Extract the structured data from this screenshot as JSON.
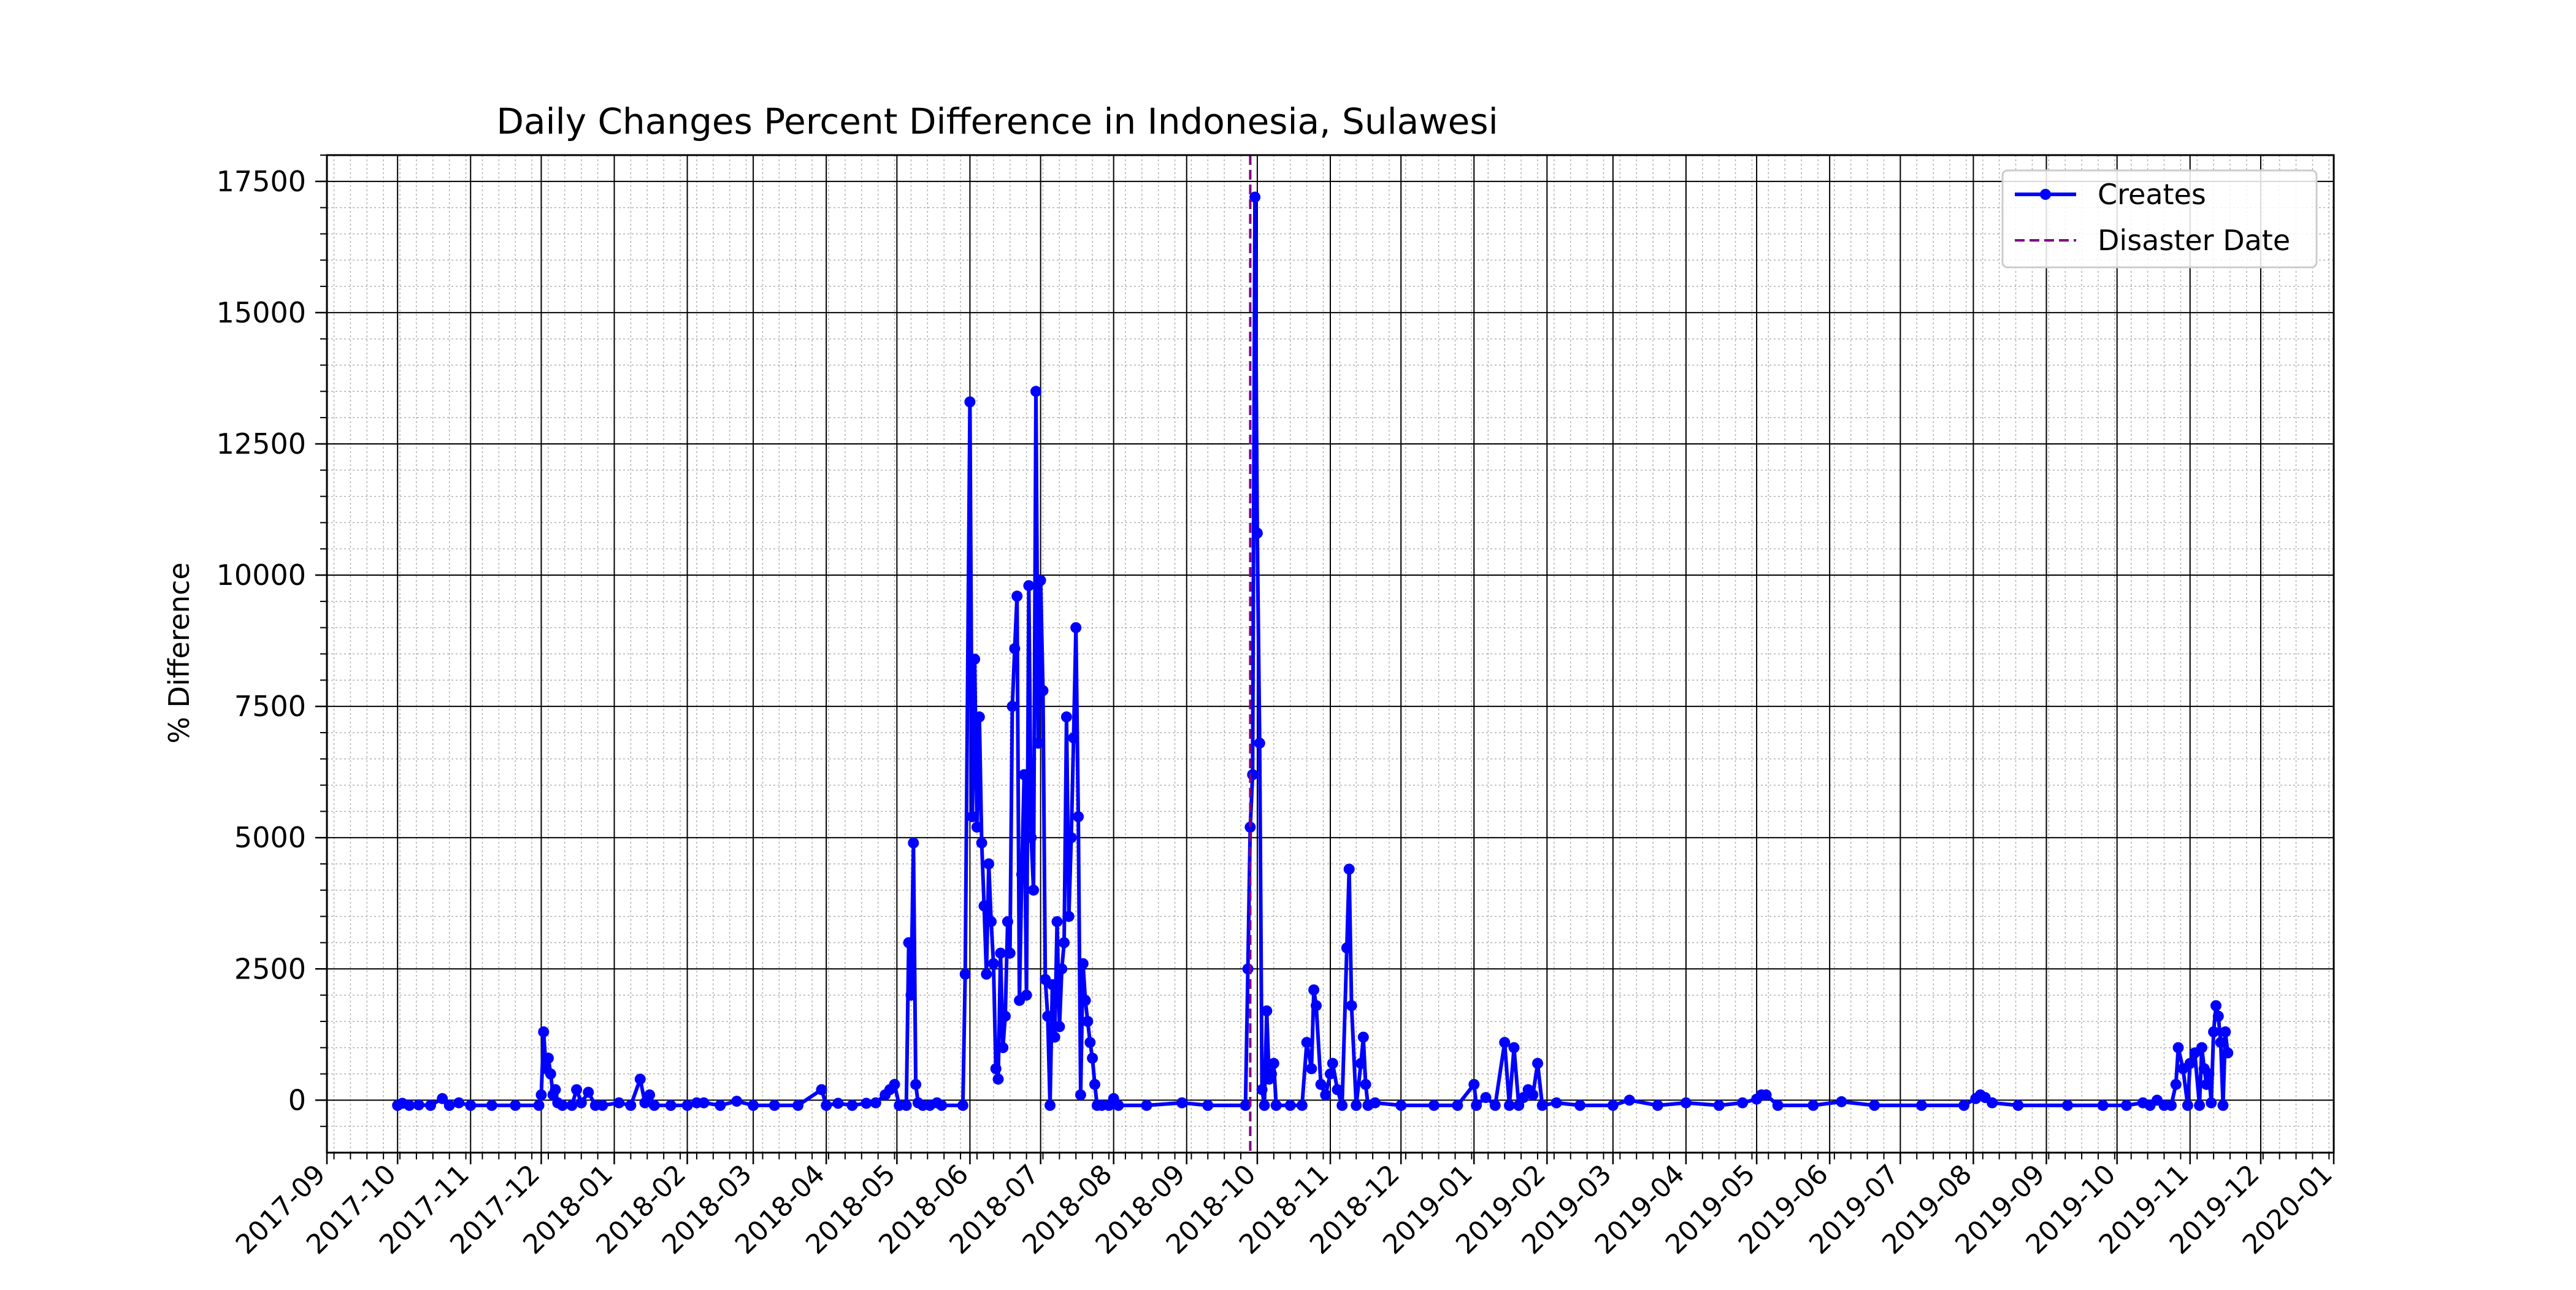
{
  "chart_data": {
    "type": "line",
    "title": "Daily Changes Percent Difference in Indonesia, Sulawesi",
    "xlabel": "",
    "ylabel": "% Difference",
    "x_axis": {
      "type": "date",
      "range": [
        "2017-09-01",
        "2020-01-01"
      ],
      "major_ticks": [
        "2017-09",
        "2017-10",
        "2017-11",
        "2017-12",
        "2018-01",
        "2018-02",
        "2018-03",
        "2018-04",
        "2018-05",
        "2018-06",
        "2018-07",
        "2018-08",
        "2018-09",
        "2018-10",
        "2018-11",
        "2018-12",
        "2019-01",
        "2019-02",
        "2019-03",
        "2019-04",
        "2019-05",
        "2019-06",
        "2019-07",
        "2019-08",
        "2019-09",
        "2019-10",
        "2019-11",
        "2019-12",
        "2020-01"
      ]
    },
    "y_axis": {
      "range": [
        -1000,
        18000
      ],
      "major_ticks": [
        "0",
        "2500",
        "5000",
        "7500",
        "10000",
        "12500",
        "15000",
        "17500"
      ]
    },
    "grid": true,
    "legend_position": "top-right",
    "series": [
      {
        "name": "Creates",
        "color": "#0000ff",
        "marker": "circle",
        "points": [
          [
            "2017-10-01",
            -100
          ],
          [
            "2017-10-03",
            -60
          ],
          [
            "2017-10-06",
            -100
          ],
          [
            "2017-10-10",
            -90
          ],
          [
            "2017-10-15",
            -100
          ],
          [
            "2017-10-20",
            30
          ],
          [
            "2017-10-23",
            -100
          ],
          [
            "2017-10-27",
            -50
          ],
          [
            "2017-11-01",
            -100
          ],
          [
            "2017-11-10",
            -100
          ],
          [
            "2017-11-20",
            -100
          ],
          [
            "2017-11-30",
            -100
          ],
          [
            "2017-12-01",
            100
          ],
          [
            "2017-12-02",
            1300
          ],
          [
            "2017-12-03",
            600
          ],
          [
            "2017-12-04",
            800
          ],
          [
            "2017-12-05",
            500
          ],
          [
            "2017-12-06",
            100
          ],
          [
            "2017-12-07",
            200
          ],
          [
            "2017-12-08",
            -50
          ],
          [
            "2017-12-10",
            -100
          ],
          [
            "2017-12-14",
            -100
          ],
          [
            "2017-12-16",
            200
          ],
          [
            "2017-12-18",
            -50
          ],
          [
            "2017-12-21",
            150
          ],
          [
            "2017-12-24",
            -100
          ],
          [
            "2017-12-27",
            -100
          ],
          [
            "2018-01-03",
            -50
          ],
          [
            "2018-01-08",
            -100
          ],
          [
            "2018-01-12",
            400
          ],
          [
            "2018-01-14",
            -50
          ],
          [
            "2018-01-16",
            100
          ],
          [
            "2018-01-18",
            -100
          ],
          [
            "2018-01-25",
            -100
          ],
          [
            "2018-02-01",
            -100
          ],
          [
            "2018-02-05",
            -50
          ],
          [
            "2018-02-08",
            -50
          ],
          [
            "2018-02-15",
            -100
          ],
          [
            "2018-02-22",
            -20
          ],
          [
            "2018-03-01",
            -100
          ],
          [
            "2018-03-10",
            -100
          ],
          [
            "2018-03-20",
            -100
          ],
          [
            "2018-03-30",
            200
          ],
          [
            "2018-04-01",
            -100
          ],
          [
            "2018-04-06",
            -60
          ],
          [
            "2018-04-12",
            -100
          ],
          [
            "2018-04-18",
            -60
          ],
          [
            "2018-04-22",
            -50
          ],
          [
            "2018-04-26",
            100
          ],
          [
            "2018-04-28",
            200
          ],
          [
            "2018-04-30",
            300
          ],
          [
            "2018-05-02",
            -100
          ],
          [
            "2018-05-05",
            -100
          ],
          [
            "2018-05-06",
            3000
          ],
          [
            "2018-05-07",
            2000
          ],
          [
            "2018-05-08",
            4900
          ],
          [
            "2018-05-09",
            300
          ],
          [
            "2018-05-10",
            -50
          ],
          [
            "2018-05-12",
            -100
          ],
          [
            "2018-05-15",
            -100
          ],
          [
            "2018-05-18",
            -50
          ],
          [
            "2018-05-20",
            -100
          ],
          [
            "2018-05-29",
            -100
          ],
          [
            "2018-05-30",
            2400
          ],
          [
            "2018-06-01",
            13300
          ],
          [
            "2018-06-02",
            5400
          ],
          [
            "2018-06-03",
            8400
          ],
          [
            "2018-06-04",
            5200
          ],
          [
            "2018-06-05",
            7300
          ],
          [
            "2018-06-06",
            4900
          ],
          [
            "2018-06-07",
            3700
          ],
          [
            "2018-06-08",
            2400
          ],
          [
            "2018-06-09",
            4500
          ],
          [
            "2018-06-10",
            3400
          ],
          [
            "2018-06-11",
            2600
          ],
          [
            "2018-06-12",
            600
          ],
          [
            "2018-06-13",
            400
          ],
          [
            "2018-06-14",
            2800
          ],
          [
            "2018-06-15",
            1000
          ],
          [
            "2018-06-16",
            1600
          ],
          [
            "2018-06-17",
            3400
          ],
          [
            "2018-06-18",
            2800
          ],
          [
            "2018-06-19",
            7500
          ],
          [
            "2018-06-20",
            8600
          ],
          [
            "2018-06-21",
            9600
          ],
          [
            "2018-06-22",
            1900
          ],
          [
            "2018-06-23",
            4300
          ],
          [
            "2018-06-24",
            6200
          ],
          [
            "2018-06-25",
            2000
          ],
          [
            "2018-06-26",
            9800
          ],
          [
            "2018-06-27",
            5000
          ],
          [
            "2018-06-28",
            4000
          ],
          [
            "2018-06-29",
            13500
          ],
          [
            "2018-06-30",
            6800
          ],
          [
            "2018-07-01",
            9900
          ],
          [
            "2018-07-02",
            7800
          ],
          [
            "2018-07-03",
            2300
          ],
          [
            "2018-07-04",
            1600
          ],
          [
            "2018-07-05",
            -100
          ],
          [
            "2018-07-06",
            2200
          ],
          [
            "2018-07-07",
            1200
          ],
          [
            "2018-07-08",
            3400
          ],
          [
            "2018-07-09",
            1400
          ],
          [
            "2018-07-10",
            2500
          ],
          [
            "2018-07-11",
            3000
          ],
          [
            "2018-07-12",
            7300
          ],
          [
            "2018-07-13",
            3500
          ],
          [
            "2018-07-14",
            5000
          ],
          [
            "2018-07-15",
            6900
          ],
          [
            "2018-07-16",
            9000
          ],
          [
            "2018-07-17",
            5400
          ],
          [
            "2018-07-18",
            100
          ],
          [
            "2018-07-19",
            2600
          ],
          [
            "2018-07-20",
            1900
          ],
          [
            "2018-07-21",
            1500
          ],
          [
            "2018-07-22",
            1100
          ],
          [
            "2018-07-23",
            800
          ],
          [
            "2018-07-24",
            300
          ],
          [
            "2018-07-25",
            -100
          ],
          [
            "2018-07-27",
            -100
          ],
          [
            "2018-07-30",
            -100
          ],
          [
            "2018-08-01",
            30
          ],
          [
            "2018-08-03",
            -100
          ],
          [
            "2018-08-15",
            -100
          ],
          [
            "2018-08-30",
            -50
          ],
          [
            "2018-09-10",
            -100
          ],
          [
            "2018-09-26",
            -100
          ],
          [
            "2018-09-27",
            2500
          ],
          [
            "2018-09-28",
            5200
          ],
          [
            "2018-09-29",
            6200
          ],
          [
            "2018-09-30",
            17200
          ],
          [
            "2018-10-01",
            10800
          ],
          [
            "2018-10-02",
            6800
          ],
          [
            "2018-10-03",
            200
          ],
          [
            "2018-10-04",
            -100
          ],
          [
            "2018-10-05",
            1700
          ],
          [
            "2018-10-06",
            400
          ],
          [
            "2018-10-07",
            500
          ],
          [
            "2018-10-08",
            700
          ],
          [
            "2018-10-09",
            -100
          ],
          [
            "2018-10-15",
            -100
          ],
          [
            "2018-10-20",
            -100
          ],
          [
            "2018-10-22",
            1100
          ],
          [
            "2018-10-24",
            600
          ],
          [
            "2018-10-25",
            2100
          ],
          [
            "2018-10-26",
            1800
          ],
          [
            "2018-10-28",
            300
          ],
          [
            "2018-10-30",
            100
          ],
          [
            "2018-11-01",
            500
          ],
          [
            "2018-11-02",
            700
          ],
          [
            "2018-11-04",
            200
          ],
          [
            "2018-11-06",
            -100
          ],
          [
            "2018-11-08",
            2900
          ],
          [
            "2018-11-09",
            4400
          ],
          [
            "2018-11-10",
            1800
          ],
          [
            "2018-11-12",
            -100
          ],
          [
            "2018-11-14",
            700
          ],
          [
            "2018-11-15",
            1200
          ],
          [
            "2018-11-16",
            300
          ],
          [
            "2018-11-17",
            -100
          ],
          [
            "2018-11-20",
            -50
          ],
          [
            "2018-12-01",
            -100
          ],
          [
            "2018-12-15",
            -100
          ],
          [
            "2018-12-25",
            -100
          ],
          [
            "2019-01-01",
            300
          ],
          [
            "2019-01-02",
            -100
          ],
          [
            "2019-01-06",
            50
          ],
          [
            "2019-01-10",
            -100
          ],
          [
            "2019-01-14",
            1100
          ],
          [
            "2019-01-16",
            -100
          ],
          [
            "2019-01-18",
            1000
          ],
          [
            "2019-01-20",
            -100
          ],
          [
            "2019-01-22",
            50
          ],
          [
            "2019-01-24",
            200
          ],
          [
            "2019-01-26",
            100
          ],
          [
            "2019-01-28",
            700
          ],
          [
            "2019-01-30",
            -100
          ],
          [
            "2019-02-05",
            -50
          ],
          [
            "2019-02-15",
            -100
          ],
          [
            "2019-03-01",
            -100
          ],
          [
            "2019-03-08",
            0
          ],
          [
            "2019-03-20",
            -100
          ],
          [
            "2019-04-01",
            -50
          ],
          [
            "2019-04-15",
            -100
          ],
          [
            "2019-04-25",
            -50
          ],
          [
            "2019-05-01",
            20
          ],
          [
            "2019-05-03",
            100
          ],
          [
            "2019-05-05",
            100
          ],
          [
            "2019-05-10",
            -100
          ],
          [
            "2019-05-25",
            -100
          ],
          [
            "2019-06-06",
            -30
          ],
          [
            "2019-06-20",
            -100
          ],
          [
            "2019-07-10",
            -100
          ],
          [
            "2019-07-28",
            -100
          ],
          [
            "2019-08-02",
            30
          ],
          [
            "2019-08-04",
            100
          ],
          [
            "2019-08-06",
            50
          ],
          [
            "2019-08-09",
            -50
          ],
          [
            "2019-08-20",
            -100
          ],
          [
            "2019-09-10",
            -100
          ],
          [
            "2019-09-25",
            -100
          ],
          [
            "2019-10-05",
            -100
          ],
          [
            "2019-10-12",
            -50
          ],
          [
            "2019-10-15",
            -100
          ],
          [
            "2019-10-18",
            0
          ],
          [
            "2019-10-21",
            -100
          ],
          [
            "2019-10-24",
            -100
          ],
          [
            "2019-10-26",
            300
          ],
          [
            "2019-10-27",
            1000
          ],
          [
            "2019-10-29",
            600
          ],
          [
            "2019-10-31",
            -100
          ],
          [
            "2019-11-01",
            700
          ],
          [
            "2019-11-03",
            900
          ],
          [
            "2019-11-05",
            -100
          ],
          [
            "2019-11-06",
            1000
          ],
          [
            "2019-11-07",
            600
          ],
          [
            "2019-11-08",
            300
          ],
          [
            "2019-11-09",
            500
          ],
          [
            "2019-11-10",
            -50
          ],
          [
            "2019-11-11",
            1300
          ],
          [
            "2019-11-12",
            1800
          ],
          [
            "2019-11-13",
            1600
          ],
          [
            "2019-11-14",
            1100
          ],
          [
            "2019-11-15",
            -100
          ],
          [
            "2019-11-16",
            1300
          ],
          [
            "2019-11-17",
            900
          ]
        ]
      },
      {
        "name": "Disaster Date",
        "color": "#800080",
        "style": "dashed",
        "x": "2018-09-28"
      }
    ]
  }
}
